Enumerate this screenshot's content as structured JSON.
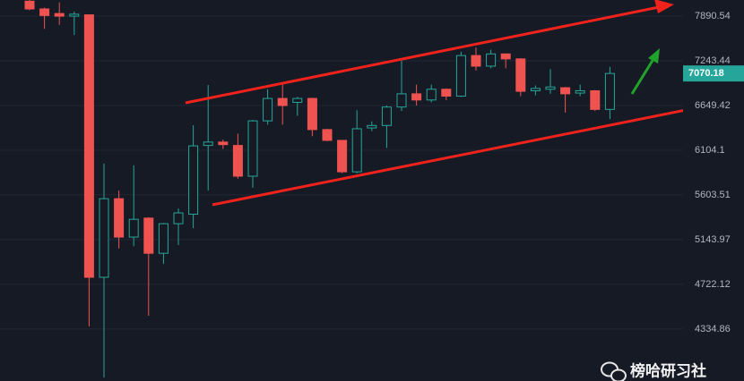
{
  "chart_data": {
    "type": "candlestick",
    "log_scale": true,
    "ylim": [
      3924,
      8138
    ],
    "yticks": [
      4334.86,
      4722.12,
      5143.97,
      5603.51,
      6104.1,
      6649.42,
      7243.44,
      7890.54
    ],
    "grid": true,
    "up_color": "#26a69a",
    "down_color": "#ef5350",
    "open": [
      8120,
      8000,
      7930,
      7890,
      7910,
      4786,
      5563,
      5169,
      5360,
      5011,
      5303,
      5400,
      6160,
      6200,
      6160,
      5808,
      6457,
      6740,
      6690,
      6740,
      6350,
      6220,
      5857,
      6370,
      6400,
      6630,
      6800,
      6720,
      6860,
      6770,
      7317,
      7170,
      7340,
      7270,
      6840,
      6860,
      6880,
      6810,
      6840,
      6600
    ],
    "high": [
      8138,
      8020,
      8100,
      7960,
      7910,
      5950,
      5650,
      5930,
      5370,
      5310,
      5460,
      6402,
      6916,
      6230,
      6300,
      6470,
      6860,
      6950,
      6760,
      6750,
      6360,
      6220,
      6590,
      6450,
      6650,
      7243,
      6920,
      6920,
      6870,
      7370,
      7430,
      7400,
      7345,
      7280,
      6910,
      7130,
      6890,
      6920,
      6850,
      7160
    ],
    "low": [
      7980,
      7700,
      7760,
      7610,
      4356,
      3950,
      5057,
      5080,
      4446,
      4910,
      5090,
      5259,
      5650,
      6120,
      5780,
      5680,
      6410,
      6410,
      6520,
      6270,
      6210,
      5840,
      5840,
      6330,
      6130,
      6580,
      6650,
      6690,
      6720,
      6760,
      7110,
      7140,
      7140,
      6770,
      6780,
      6800,
      6560,
      6770,
      6580,
      6480
    ],
    "close": [
      8000,
      7900,
      7890,
      7920,
      4786,
      5563,
      5169,
      5348,
      5011,
      5303,
      5414,
      6155,
      6200,
      6170,
      5808,
      6457,
      6740,
      6649,
      6740,
      6350,
      6220,
      5857,
      6360,
      6400,
      6630,
      6800,
      6720,
      6860,
      6770,
      7317,
      7170,
      7340,
      7270,
      6833,
      6870,
      6890,
      6800,
      6840,
      6600,
      7070.18
    ],
    "last_price": 7070.18,
    "watermark": "榜哈研习社"
  }
}
